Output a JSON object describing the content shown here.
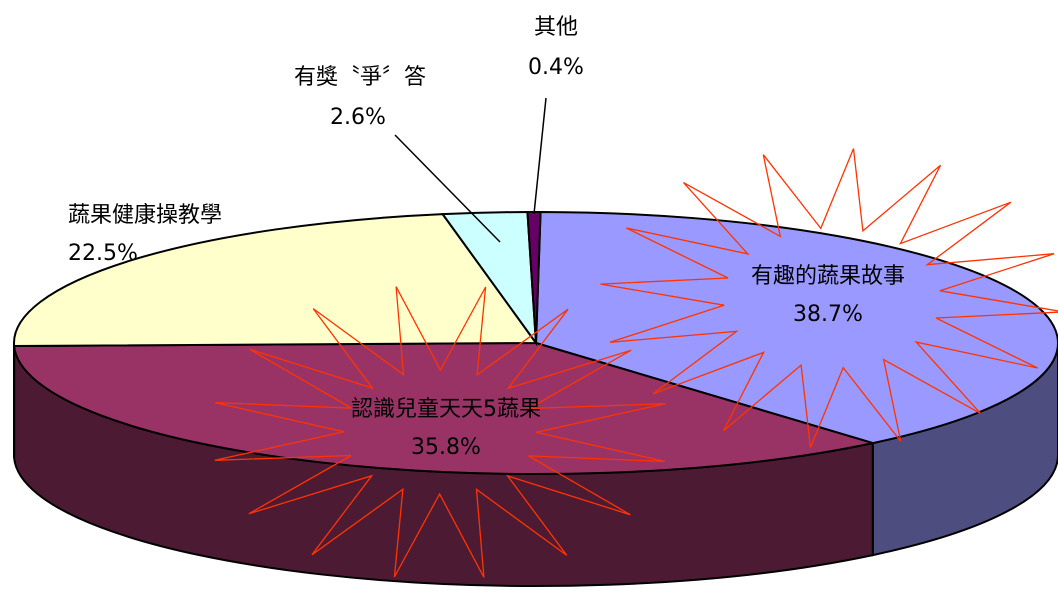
{
  "chart_data": {
    "type": "pie",
    "title": "",
    "slices": [
      {
        "label": "有趣的蔬果故事",
        "value_label": "38.7%",
        "value": 38.7,
        "color": "#9999ff",
        "side_color": "#4d4d80"
      },
      {
        "label": "認識兒童天天5蔬果",
        "value_label": "35.8%",
        "value": 35.8,
        "color": "#993366",
        "side_color": "#4d1a33"
      },
      {
        "label": "蔬果健康操教學",
        "value_label": "22.5%",
        "value": 22.5,
        "color": "#ffffcc",
        "side_color": "#808066"
      },
      {
        "label": "有獎〝爭〞答",
        "value_label": "2.6%",
        "value": 2.6,
        "color": "#ccffff",
        "side_color": "#668080"
      },
      {
        "label": "其他",
        "value_label": "0.4%",
        "value": 0.4,
        "color": "#660066",
        "side_color": "#330033"
      }
    ],
    "highlighted": [
      "有趣的蔬果故事",
      "認識兒童天天5蔬果"
    ],
    "highlight_color": "#ff3300",
    "style": "3d"
  }
}
